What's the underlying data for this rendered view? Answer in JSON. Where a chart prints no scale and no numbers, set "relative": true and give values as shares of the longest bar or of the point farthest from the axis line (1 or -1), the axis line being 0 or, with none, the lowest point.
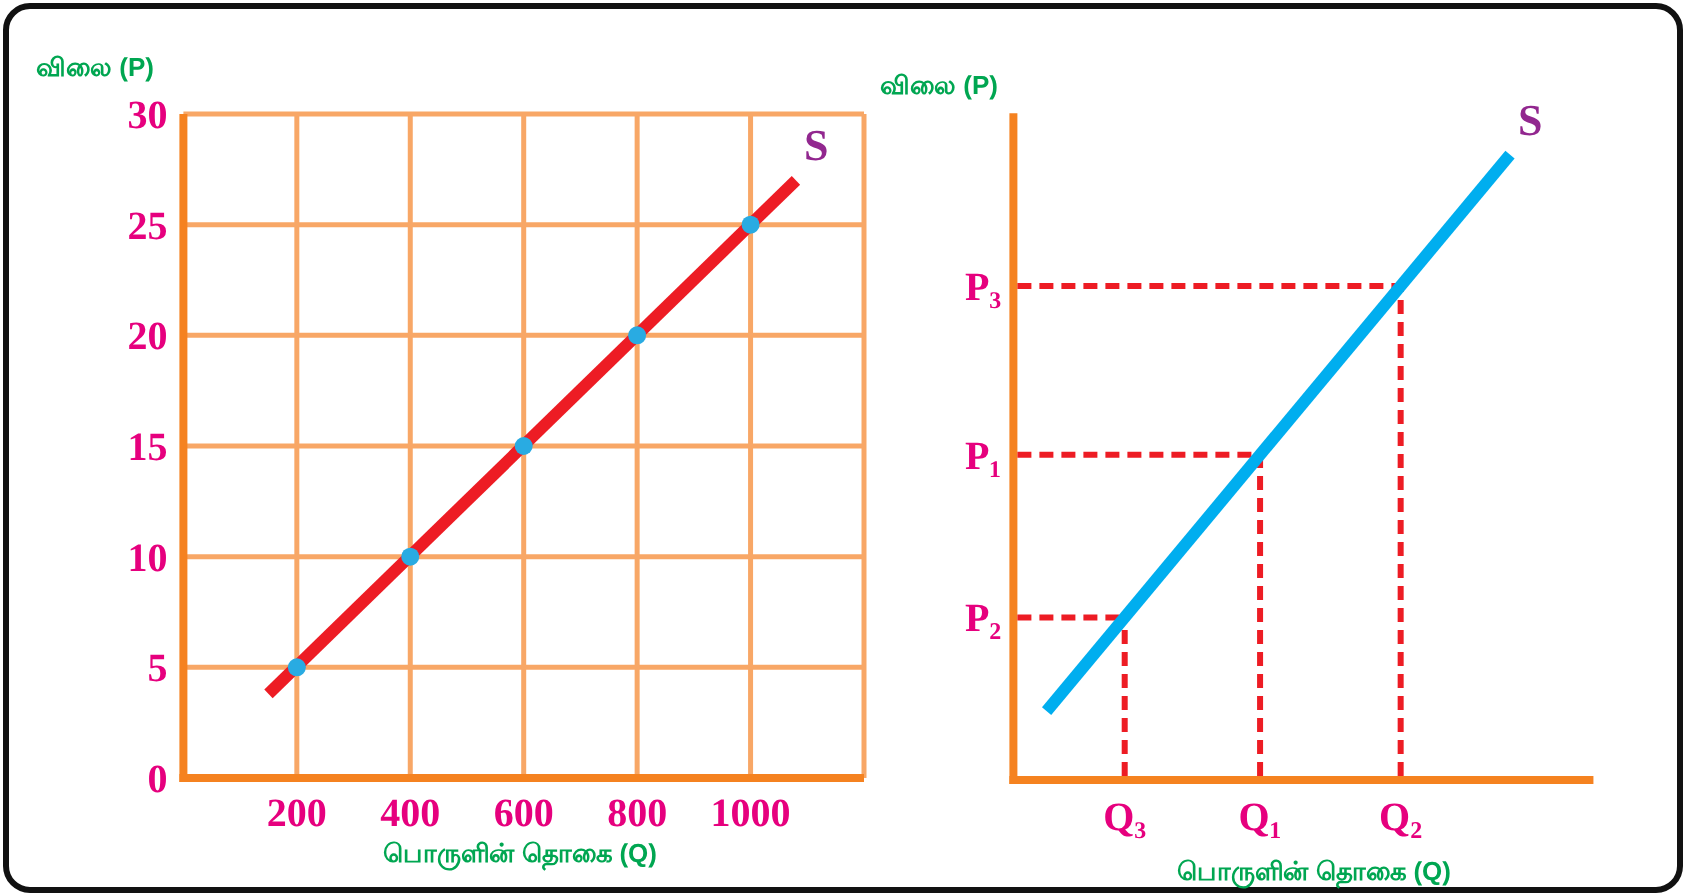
{
  "chart_data": [
    {
      "type": "line",
      "ylabel": "விலை (P)",
      "xlabel": "பொருளின் தொகை (Q)",
      "xlim": [
        0,
        1200
      ],
      "xticks": [
        200,
        400,
        600,
        800,
        1000,
        {
          "value": 1200,
          "label": null
        }
      ],
      "ylim": [
        0,
        30
      ],
      "yticks": [
        0,
        5,
        10,
        15,
        20,
        25,
        30
      ],
      "grid": true,
      "series": [
        {
          "name": "S",
          "color": "#ed1c24",
          "x": [
            150,
            1080
          ],
          "values": [
            3.8,
            27
          ]
        },
        {
          "type": "scatter",
          "marker": "circle",
          "color": "#29abe2",
          "x": [
            200,
            400,
            600,
            800,
            1000
          ],
          "values": [
            5,
            10,
            15,
            20,
            25
          ]
        }
      ]
    },
    {
      "type": "line",
      "relative": true,
      "ylabel": "விலை (P)",
      "xlabel": "பொருளின் தொகை (Q)",
      "categories": [
        null,
        null
      ],
      "series": [
        {
          "name": "S",
          "color": "#00aeef",
          "values": [
            0.11,
            1
          ]
        }
      ],
      "annotations": [
        {
          "text": "Q₃",
          "y": 0.26
        },
        {
          "text": "Q₁",
          "y": 0.52
        },
        {
          "text": "Q₂",
          "y": 0.79
        }
      ],
      "ref_lines": [
        {
          "axis": "y",
          "value": 0.79,
          "label": "P₃",
          "color": "#ed1c24",
          "line_style": "dashed"
        },
        {
          "axis": "y",
          "value": 0.52,
          "label": "P₁",
          "color": "#ed1c24",
          "line_style": "dashed"
        },
        {
          "axis": "y",
          "value": 0.26,
          "label": "P₂",
          "color": "#ed1c24",
          "line_style": "dashed"
        }
      ]
    }
  ]
}
